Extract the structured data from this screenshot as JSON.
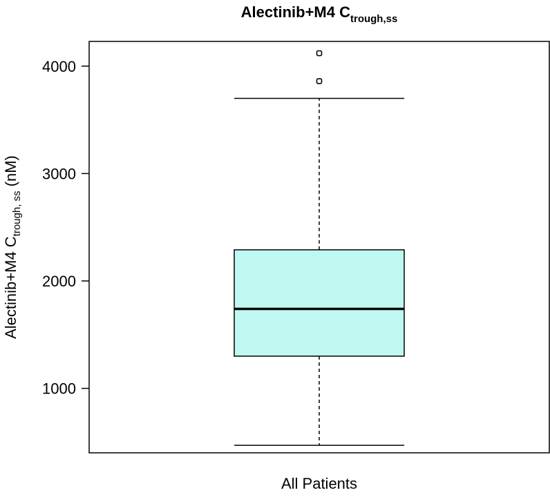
{
  "chart_data": {
    "type": "box",
    "title": {
      "main": "Alectinib+M4 C",
      "sub": "trough,ss"
    },
    "ylabel": {
      "main": "Alectinib+M4 C",
      "sub": "trough, ss",
      "unit": "(nM)"
    },
    "categories": [
      "All Patients"
    ],
    "ylim": [
      400,
      4230
    ],
    "yticks": [
      1000,
      2000,
      3000,
      4000
    ],
    "box": {
      "whisker_low": 470,
      "q1": 1300,
      "median": 1740,
      "q3": 2290,
      "whisker_high": 3700,
      "outliers": [
        3860,
        4120
      ]
    },
    "grid": false,
    "colors": {
      "box_fill": "#bff8f0",
      "line": "#000000"
    }
  }
}
